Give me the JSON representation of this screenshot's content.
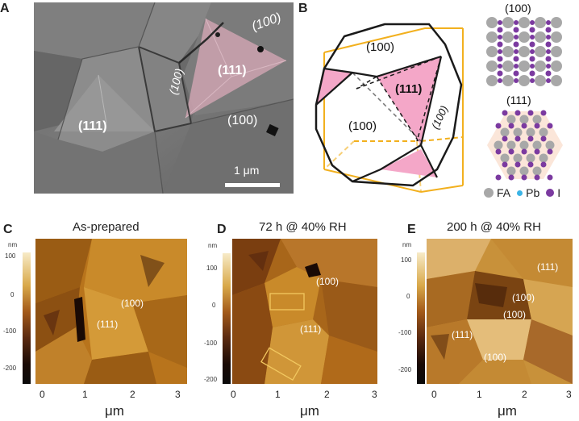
{
  "panels": {
    "A": {
      "label": "A",
      "facets": [
        "(100)",
        "(111)",
        "(100)",
        "(111)",
        "(100)"
      ],
      "scale_bar": "1 μm"
    },
    "B": {
      "label": "B",
      "crystal_facets": [
        "(100)",
        "(111)",
        "(100)",
        "(100)"
      ],
      "lattice_100_title": "(100)",
      "lattice_111_title": "(111)",
      "legend": {
        "fa": "FA",
        "pb": "Pb",
        "i": "I"
      },
      "colors": {
        "fa": "#a8a8a8",
        "pb": "#3bb4e6",
        "i": "#7b3aa0",
        "cube": "#f2b01e",
        "facet_111": "#f4a7c8"
      }
    },
    "C": {
      "label": "C",
      "title": "As-prepared",
      "facets": [
        "(100)",
        "(111)"
      ],
      "cb_unit": "nm",
      "cb_ticks": [
        "100",
        "0",
        "-100",
        "-200"
      ],
      "x_ticks": [
        "0",
        "1",
        "2",
        "3"
      ],
      "x_label": "μm"
    },
    "D": {
      "label": "D",
      "title": "72 h @ 40% RH",
      "facets": [
        "(100)",
        "(111)"
      ],
      "cb_unit": "nm",
      "cb_ticks": [
        "100",
        "0",
        "-100",
        "-200"
      ],
      "x_ticks": [
        "0",
        "1",
        "2",
        "3"
      ],
      "x_label": "μm"
    },
    "E": {
      "label": "E",
      "title": "200 h @ 40% RH",
      "facets": [
        "(111)",
        "(100)",
        "(100)",
        "(111)",
        "(100)"
      ],
      "cb_unit": "nm",
      "cb_ticks": [
        "100",
        "0",
        "-100",
        "-200"
      ],
      "x_ticks": [
        "0",
        "1",
        "2",
        "3"
      ],
      "x_label": "μm"
    }
  }
}
